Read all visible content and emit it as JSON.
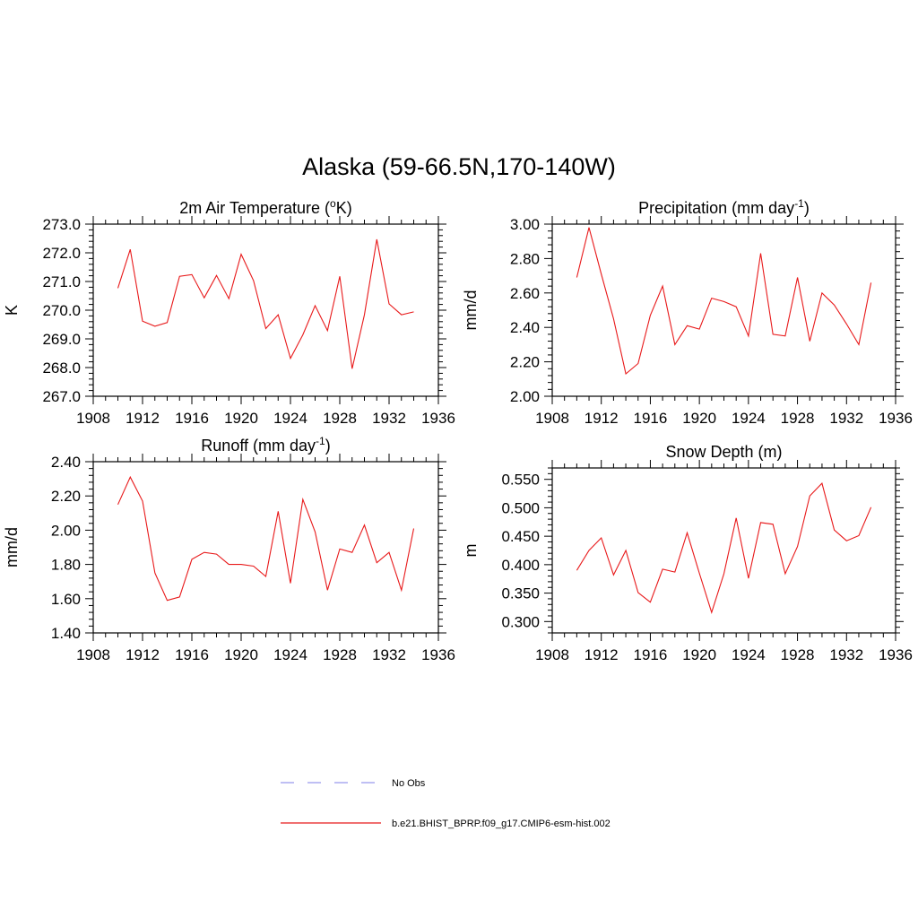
{
  "figure": {
    "title": "Alaska (59-66.5N,170-140W)"
  },
  "colors": {
    "series": "#e8191a",
    "obs": "#9999ee",
    "axis": "#000000"
  },
  "legend": {
    "placement": "bottom-center",
    "entries": [
      {
        "label": "No Obs",
        "style": "dashed",
        "color": "#9999ee"
      },
      {
        "label": "b.e21.BHIST_BPRP.f09_g17.CMIP6-esm-hist.002",
        "style": "solid",
        "color": "#e8191a"
      }
    ]
  },
  "chart_data": [
    {
      "type": "line",
      "title": "2m Air Temperature (",
      "title_sup": "o",
      "title_after": "K)",
      "xlabel": "",
      "ylabel": "K",
      "xlim": [
        1908,
        1936
      ],
      "ylim": [
        267.0,
        273.0
      ],
      "x_ticks": [
        "1908",
        "1912",
        "1916",
        "1920",
        "1924",
        "1928",
        "1932",
        "1936"
      ],
      "y_ticks": [
        "267.0",
        "268.0",
        "269.0",
        "270.0",
        "271.0",
        "272.0",
        "273.0"
      ],
      "y_tick_values": [
        267.0,
        268.0,
        269.0,
        270.0,
        271.0,
        272.0,
        273.0
      ],
      "y_minor_step": 0.2,
      "grid": false,
      "x": [
        1910,
        1911,
        1912,
        1913,
        1914,
        1915,
        1916,
        1917,
        1918,
        1919,
        1920,
        1921,
        1922,
        1923,
        1924,
        1925,
        1926,
        1927,
        1928,
        1929,
        1930,
        1931,
        1932,
        1933,
        1934
      ],
      "series": [
        {
          "name": "b.e21.BHIST_BPRP.f09_g17.CMIP6-esm-hist.002",
          "values": [
            270.77,
            272.12,
            269.62,
            269.44,
            269.57,
            271.18,
            271.24,
            270.43,
            271.21,
            270.4,
            271.95,
            271.03,
            269.36,
            269.84,
            268.32,
            269.14,
            270.16,
            269.29,
            271.18,
            267.96,
            269.84,
            272.47,
            270.22,
            269.84,
            269.94
          ]
        }
      ]
    },
    {
      "type": "line",
      "title": "Precipitation (mm day",
      "title_sup": "-1",
      "title_after": ")",
      "xlabel": "",
      "ylabel": "mm/d",
      "xlim": [
        1908,
        1936
      ],
      "ylim": [
        2.0,
        3.0
      ],
      "x_ticks": [
        "1908",
        "1912",
        "1916",
        "1920",
        "1924",
        "1928",
        "1932",
        "1936"
      ],
      "y_ticks": [
        "2.00",
        "2.20",
        "2.40",
        "2.60",
        "2.80",
        "3.00"
      ],
      "y_tick_values": [
        2.0,
        2.2,
        2.4,
        2.6,
        2.8,
        3.0
      ],
      "y_minor_step": 0.04,
      "grid": false,
      "x": [
        1910,
        1911,
        1912,
        1913,
        1914,
        1915,
        1916,
        1917,
        1918,
        1919,
        1920,
        1921,
        1922,
        1923,
        1924,
        1925,
        1926,
        1927,
        1928,
        1929,
        1930,
        1931,
        1932,
        1933,
        1934
      ],
      "series": [
        {
          "name": "b.e21.BHIST_BPRP.f09_g17.CMIP6-esm-hist.002",
          "values": [
            2.69,
            2.98,
            2.71,
            2.45,
            2.13,
            2.19,
            2.47,
            2.64,
            2.3,
            2.41,
            2.39,
            2.57,
            2.55,
            2.52,
            2.35,
            2.83,
            2.36,
            2.35,
            2.69,
            2.32,
            2.6,
            2.53,
            2.42,
            2.3,
            2.66
          ]
        }
      ]
    },
    {
      "type": "line",
      "title": "Runoff (mm day",
      "title_sup": "-1",
      "title_after": ")",
      "xlabel": "",
      "ylabel": "mm/d",
      "xlim": [
        1908,
        1936
      ],
      "ylim": [
        1.4,
        2.4
      ],
      "x_ticks": [
        "1908",
        "1912",
        "1916",
        "1920",
        "1924",
        "1928",
        "1932",
        "1936"
      ],
      "y_ticks": [
        "1.40",
        "1.60",
        "1.80",
        "2.00",
        "2.20",
        "2.40"
      ],
      "y_tick_values": [
        1.4,
        1.6,
        1.8,
        2.0,
        2.2,
        2.4
      ],
      "y_minor_step": 0.04,
      "grid": false,
      "x": [
        1910,
        1911,
        1912,
        1913,
        1914,
        1915,
        1916,
        1917,
        1918,
        1919,
        1920,
        1921,
        1922,
        1923,
        1924,
        1925,
        1926,
        1927,
        1928,
        1929,
        1930,
        1931,
        1932,
        1933,
        1934
      ],
      "series": [
        {
          "name": "b.e21.BHIST_BPRP.f09_g17.CMIP6-esm-hist.002",
          "values": [
            2.15,
            2.31,
            2.17,
            1.75,
            1.59,
            1.61,
            1.83,
            1.87,
            1.86,
            1.8,
            1.8,
            1.79,
            1.73,
            2.11,
            1.69,
            2.18,
            1.99,
            1.65,
            1.89,
            1.87,
            2.03,
            1.81,
            1.87,
            1.65,
            2.01
          ]
        }
      ]
    },
    {
      "type": "line",
      "title": "Snow Depth (m)",
      "title_sup": "",
      "title_after": "",
      "xlabel": "",
      "ylabel": "m",
      "xlim": [
        1908,
        1936
      ],
      "ylim": [
        0.28,
        0.57
      ],
      "x_ticks": [
        "1908",
        "1912",
        "1916",
        "1920",
        "1924",
        "1928",
        "1932",
        "1936"
      ],
      "y_ticks": [
        "0.300",
        "0.350",
        "0.400",
        "0.450",
        "0.500",
        "0.550"
      ],
      "y_tick_values": [
        0.3,
        0.35,
        0.4,
        0.45,
        0.5,
        0.55
      ],
      "y_minor_step": 0.01,
      "grid": false,
      "x": [
        1910,
        1911,
        1912,
        1913,
        1914,
        1915,
        1916,
        1917,
        1918,
        1919,
        1920,
        1921,
        1922,
        1923,
        1924,
        1925,
        1926,
        1927,
        1928,
        1929,
        1930,
        1931,
        1932,
        1933,
        1934
      ],
      "series": [
        {
          "name": "b.e21.BHIST_BPRP.f09_g17.CMIP6-esm-hist.002",
          "values": [
            0.39,
            0.425,
            0.447,
            0.382,
            0.425,
            0.351,
            0.334,
            0.392,
            0.387,
            0.456,
            0.385,
            0.316,
            0.384,
            0.482,
            0.376,
            0.474,
            0.471,
            0.384,
            0.432,
            0.521,
            0.543,
            0.461,
            0.442,
            0.451,
            0.501
          ]
        }
      ]
    }
  ]
}
